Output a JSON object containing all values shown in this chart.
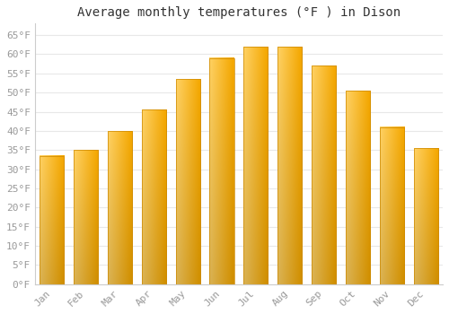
{
  "title": "Average monthly temperatures (°F ) in Dison",
  "months": [
    "Jan",
    "Feb",
    "Mar",
    "Apr",
    "May",
    "Jun",
    "Jul",
    "Aug",
    "Sep",
    "Oct",
    "Nov",
    "Dec"
  ],
  "values": [
    33.5,
    35.0,
    40.0,
    45.5,
    53.5,
    59.0,
    62.0,
    62.0,
    57.0,
    50.5,
    41.0,
    35.5
  ],
  "bar_color_top": "#F5A800",
  "bar_color_bottom": "#FFD060",
  "bar_color_left": "#FFD060",
  "bar_color_right": "#E09000",
  "ylim": [
    0,
    68
  ],
  "yticks": [
    0,
    5,
    10,
    15,
    20,
    25,
    30,
    35,
    40,
    45,
    50,
    55,
    60,
    65
  ],
  "ytick_labels": [
    "0°F",
    "5°F",
    "10°F",
    "15°F",
    "20°F",
    "25°F",
    "30°F",
    "35°F",
    "40°F",
    "45°F",
    "50°F",
    "55°F",
    "60°F",
    "65°F"
  ],
  "background_color": "#ffffff",
  "grid_color": "#e8e8e8",
  "title_fontsize": 10,
  "tick_fontsize": 8,
  "tick_color": "#999999",
  "title_color": "#333333",
  "font_family": "monospace",
  "bar_width": 0.72
}
